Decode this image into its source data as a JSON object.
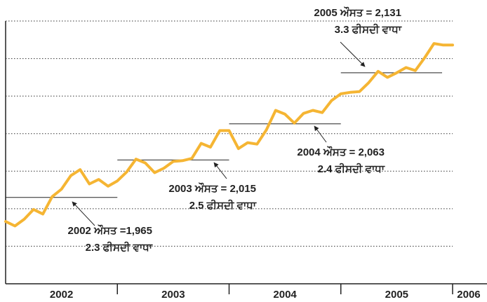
{
  "chart_data": {
    "type": "line",
    "x_axis_labels": [
      "2002",
      "2003",
      "2004",
      "2005",
      "2006"
    ],
    "series": [
      {
        "color": "#f5b533",
        "values": [
          1933,
          1927,
          1936,
          1949,
          1943,
          1966,
          1976,
          1994,
          2002,
          1983,
          1989,
          1980,
          1987,
          1999,
          2016,
          2011,
          1998,
          2004,
          2013,
          2014,
          2017,
          2037,
          2032,
          2054,
          2054,
          2030,
          2038,
          2036,
          2055,
          2081,
          2076,
          2064,
          2077,
          2081,
          2078,
          2094,
          2103,
          2105,
          2106,
          2118,
          2133,
          2125,
          2131,
          2138,
          2134,
          2151,
          2170,
          2168,
          2168
        ]
      }
    ],
    "ylim": [
      1850,
      2200
    ],
    "yticks": [
      1900,
      1950,
      2000,
      2050,
      2100,
      2150,
      2200
    ],
    "grid": true,
    "annotations": [
      {
        "lines": [
          "2002 ਔਸਤ =1,965",
          "2.3 ਫੀਸਦੀ ਵਾਧਾ"
        ],
        "average": 1965
      },
      {
        "lines": [
          "2003 ਔਸਤ = 2,015",
          "2.5 ਫੀਸਦੀ ਵਾਧਾ"
        ],
        "average": 2015
      },
      {
        "lines": [
          "2004 ਔਸਤ = 2,063",
          "2.4 ਫੀਸਦੀ ਵਾਧਾ"
        ],
        "average": 2063
      },
      {
        "lines": [
          "2005 ਔਸਤ = 2,131",
          "3.3 ਫੀਸਦੀ ਵਾਧਾ"
        ],
        "average": 2131
      }
    ]
  }
}
